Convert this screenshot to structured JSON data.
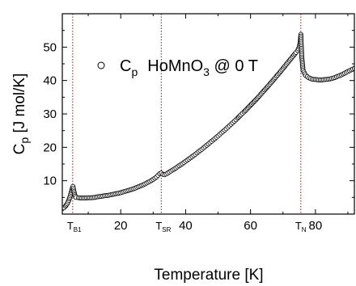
{
  "chart_data": {
    "type": "scatter",
    "xlabel": "Temperature [K]",
    "ylabel_main": "C",
    "ylabel_sub": "p",
    "ylabel_rest": " [J mol/K]",
    "xlim": [
      2,
      92
    ],
    "ylim": [
      0,
      60
    ],
    "x_ticks": [
      20,
      40,
      60,
      80
    ],
    "y_ticks": [
      10,
      20,
      30,
      40,
      50
    ],
    "legend": {
      "position": "top-center",
      "marker": "open-circle",
      "label_main": "C",
      "label_sub": "p",
      "label_sample_a": "HoMnO",
      "label_sample_sub": "3",
      "label_sample_b": " @ 0 T"
    },
    "transition_markers": [
      {
        "x": 5.2,
        "label_main": "T",
        "label_sub": "B1"
      },
      {
        "x": 32.5,
        "label_main": "T",
        "label_sub": "SR"
      },
      {
        "x": 75.5,
        "label_main": "T",
        "label_sub": "N"
      }
    ],
    "marker_color": "#cc0000",
    "series": [
      {
        "points": [
          [
            2.0,
            1.6
          ],
          [
            2.5,
            1.9
          ],
          [
            3.0,
            2.4
          ],
          [
            3.5,
            3.1
          ],
          [
            4.0,
            4.1
          ],
          [
            4.3,
            5.0
          ],
          [
            4.6,
            6.0
          ],
          [
            4.9,
            7.0
          ],
          [
            5.1,
            7.8
          ],
          [
            5.3,
            8.3
          ],
          [
            5.5,
            7.2
          ],
          [
            5.8,
            5.8
          ],
          [
            6.2,
            5.0
          ],
          [
            7.0,
            4.9
          ],
          [
            8.0,
            4.8
          ],
          [
            9.0,
            4.8
          ],
          [
            10.0,
            4.9
          ],
          [
            11.0,
            4.9
          ],
          [
            12.0,
            5.0
          ],
          [
            13.0,
            5.2
          ],
          [
            14.0,
            5.3
          ],
          [
            15.0,
            5.5
          ],
          [
            16.0,
            5.6
          ],
          [
            17.0,
            5.8
          ],
          [
            18.0,
            6.0
          ],
          [
            19.0,
            6.2
          ],
          [
            20.0,
            6.4
          ],
          [
            21.0,
            6.7
          ],
          [
            22.0,
            7.0
          ],
          [
            23.0,
            7.3
          ],
          [
            24.0,
            7.6
          ],
          [
            25.0,
            8.0
          ],
          [
            26.0,
            8.4
          ],
          [
            27.0,
            8.8
          ],
          [
            28.0,
            9.3
          ],
          [
            29.0,
            9.8
          ],
          [
            30.0,
            10.4
          ],
          [
            31.0,
            11.1
          ],
          [
            31.5,
            11.6
          ],
          [
            32.0,
            12.1
          ],
          [
            32.5,
            12.3
          ],
          [
            33.0,
            11.9
          ],
          [
            33.5,
            11.8
          ],
          [
            34.0,
            12.0
          ],
          [
            35.0,
            12.6
          ],
          [
            36.0,
            13.2
          ],
          [
            37.0,
            13.8
          ],
          [
            38.0,
            14.5
          ],
          [
            39.0,
            15.1
          ],
          [
            40.0,
            15.8
          ],
          [
            41.0,
            16.5
          ],
          [
            42.0,
            17.2
          ],
          [
            43.0,
            17.9
          ],
          [
            44.0,
            18.7
          ],
          [
            45.0,
            19.4
          ],
          [
            46.0,
            20.2
          ],
          [
            47.0,
            21.0
          ],
          [
            48.0,
            21.8
          ],
          [
            49.0,
            22.6
          ],
          [
            50.0,
            23.4
          ],
          [
            51.0,
            24.3
          ],
          [
            52.0,
            25.1
          ],
          [
            53.0,
            26.0
          ],
          [
            54.0,
            26.9
          ],
          [
            55.0,
            27.8
          ],
          [
            56.0,
            28.7
          ],
          [
            57.0,
            29.7
          ],
          [
            58.0,
            30.6
          ],
          [
            59.0,
            31.6
          ],
          [
            60.0,
            32.6
          ],
          [
            61.0,
            33.6
          ],
          [
            62.0,
            34.6
          ],
          [
            63.0,
            35.7
          ],
          [
            64.0,
            36.8
          ],
          [
            65.0,
            37.9
          ],
          [
            66.0,
            39.0
          ],
          [
            67.0,
            40.1
          ],
          [
            68.0,
            41.3
          ],
          [
            69.0,
            42.4
          ],
          [
            70.0,
            43.6
          ],
          [
            71.0,
            44.8
          ],
          [
            72.0,
            46.0
          ],
          [
            73.0,
            47.2
          ],
          [
            74.0,
            48.4
          ],
          [
            74.5,
            49.0
          ],
          [
            75.0,
            50.0
          ],
          [
            75.3,
            51.5
          ],
          [
            75.5,
            53.8
          ],
          [
            75.8,
            47.0
          ],
          [
            76.2,
            43.0
          ],
          [
            77.0,
            41.5
          ],
          [
            78.0,
            40.8
          ],
          [
            79.0,
            40.4
          ],
          [
            80.0,
            40.3
          ],
          [
            81.0,
            40.2
          ],
          [
            82.0,
            40.2
          ],
          [
            83.0,
            40.3
          ],
          [
            84.0,
            40.4
          ],
          [
            85.0,
            40.6
          ],
          [
            86.0,
            40.9
          ],
          [
            87.0,
            41.3
          ],
          [
            88.0,
            41.7
          ],
          [
            89.0,
            42.2
          ],
          [
            90.0,
            42.7
          ],
          [
            91.0,
            43.2
          ],
          [
            92.0,
            43.6
          ]
        ]
      }
    ]
  }
}
